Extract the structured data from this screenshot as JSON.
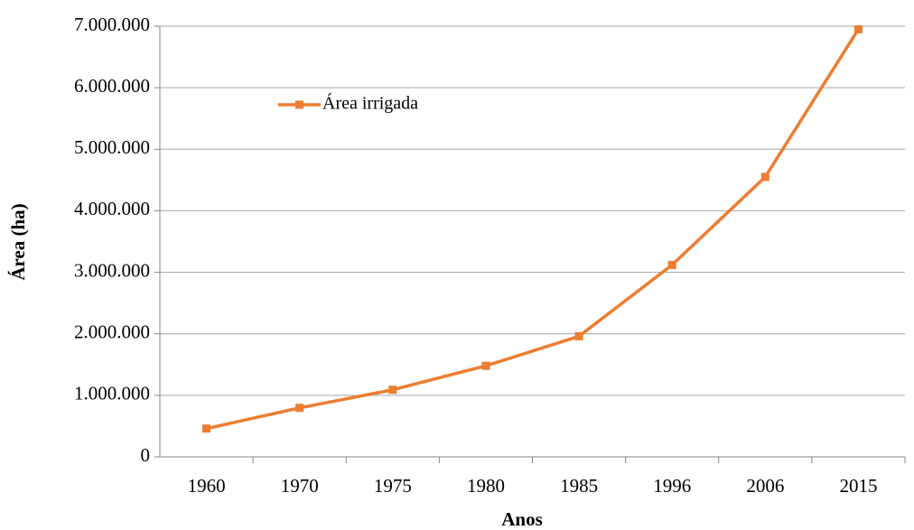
{
  "chart_data": {
    "type": "line",
    "x_label": "Anos",
    "y_label": "Área (ha)",
    "categories": [
      "1960",
      "1970",
      "1975",
      "1980",
      "1985",
      "1996",
      "2006",
      "2015"
    ],
    "series": [
      {
        "name": "Área irrigada",
        "color": "#ed7d31",
        "values": [
          460000,
          796000,
          1090000,
          1480000,
          1960000,
          3120000,
          4550000,
          6950000
        ]
      }
    ],
    "ylim": [
      0,
      7000000
    ],
    "yticks": [
      0,
      {
        "value": 1000000,
        "label": "1.000.000"
      },
      {
        "value": 2000000,
        "label": "2.000.000"
      },
      {
        "value": 3000000,
        "label": "3.000.000"
      },
      {
        "value": 4000000,
        "label": "4.000.000"
      },
      {
        "value": 5000000,
        "label": "5.000.000"
      },
      {
        "value": 6000000,
        "label": "6.000.000"
      },
      {
        "value": 7000000,
        "label": "7.000.000"
      }
    ],
    "grid": true,
    "legend": "upper left"
  }
}
